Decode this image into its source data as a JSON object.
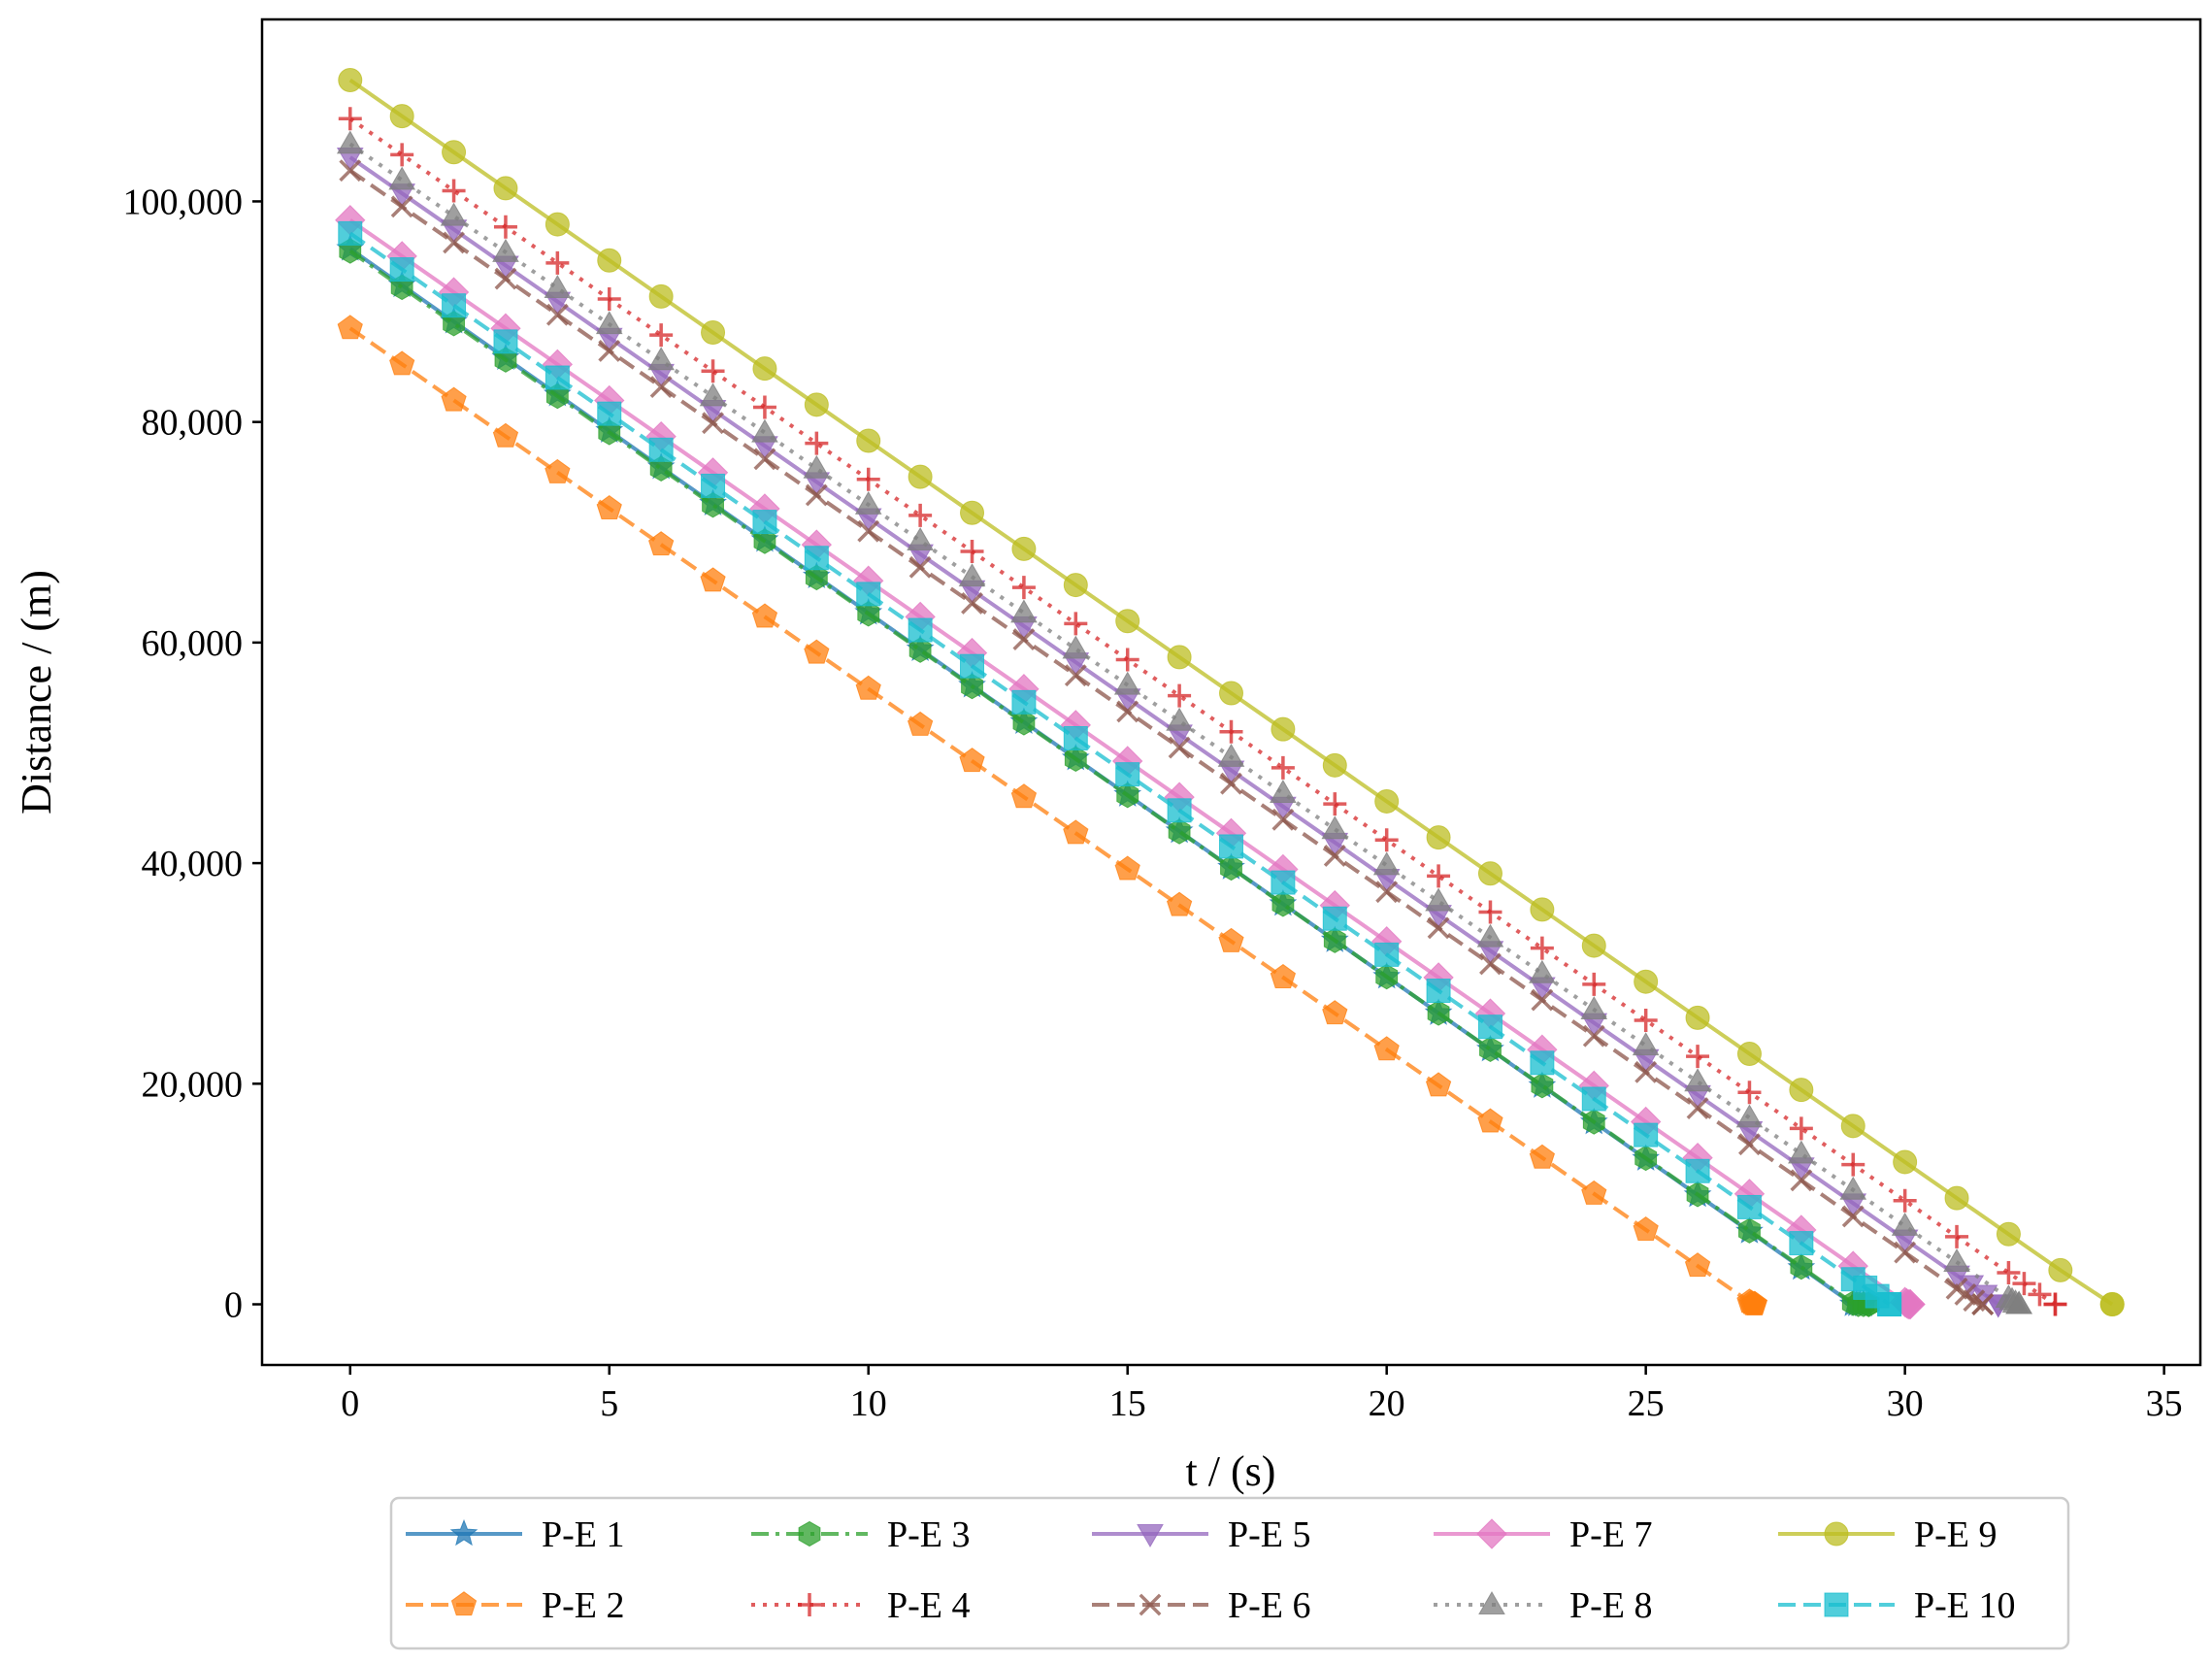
{
  "chart_data": {
    "type": "line",
    "title": "",
    "xlabel": "t / (s)",
    "ylabel": "Distance / (m)",
    "xlim": [
      -1.7,
      35.7
    ],
    "ylim": [
      -5500,
      116500
    ],
    "xticks": [
      0,
      5,
      10,
      15,
      20,
      25,
      30,
      35
    ],
    "yticks": [
      0,
      20000,
      40000,
      60000,
      80000,
      100000
    ],
    "xtick_labels": [
      "0",
      "5",
      "10",
      "15",
      "20",
      "25",
      "30",
      "35"
    ],
    "ytick_labels": [
      "0",
      "20,000",
      "40,000",
      "60,000",
      "80,000",
      "100,000"
    ],
    "grid": false,
    "legend_position": "bottom-center, outside plot, 5 columns",
    "series": [
      {
        "name": "P-E 1",
        "color": "#1f77b4",
        "marker": "star",
        "linestyle": "solid",
        "start": 95700,
        "slope": -3300,
        "t_end": 29.2
      },
      {
        "name": "P-E 2",
        "color": "#ff7f0e",
        "marker": "pentagon",
        "linestyle": "dashed",
        "start": 88500,
        "slope": -3270,
        "t_end": 27.1
      },
      {
        "name": "P-E 3",
        "color": "#2ca02c",
        "marker": "hexagon",
        "linestyle": "dashdot",
        "start": 95500,
        "slope": -3290,
        "t_end": 29.3
      },
      {
        "name": "P-E 4",
        "color": "#d62728",
        "marker": "plus",
        "linestyle": "dotted",
        "start": 107500,
        "slope": -3270,
        "t_end": 32.9
      },
      {
        "name": "P-E 5",
        "color": "#9467bd",
        "marker": "triangle-down",
        "linestyle": "solid",
        "start": 104000,
        "slope": -3270,
        "t_end": 31.8
      },
      {
        "name": "P-E 6",
        "color": "#8c564b",
        "marker": "x",
        "linestyle": "dashed",
        "start": 102800,
        "slope": -3270,
        "t_end": 31.5
      },
      {
        "name": "P-E 7",
        "color": "#e377c2",
        "marker": "diamond",
        "linestyle": "solid",
        "start": 98300,
        "slope": -3270,
        "t_end": 30.1
      },
      {
        "name": "P-E 8",
        "color": "#7f7f7f",
        "marker": "triangle-up",
        "linestyle": "dotted",
        "start": 105200,
        "slope": -3270,
        "t_end": 32.2
      },
      {
        "name": "P-E 9",
        "color": "#bcbd22",
        "marker": "circle",
        "linestyle": "solid",
        "start": 111000,
        "slope": -3270,
        "t_end": 34.0
      },
      {
        "name": "P-E 10",
        "color": "#17becf",
        "marker": "square",
        "linestyle": "dashed",
        "start": 97100,
        "slope": -3270,
        "t_end": 29.7
      }
    ]
  }
}
